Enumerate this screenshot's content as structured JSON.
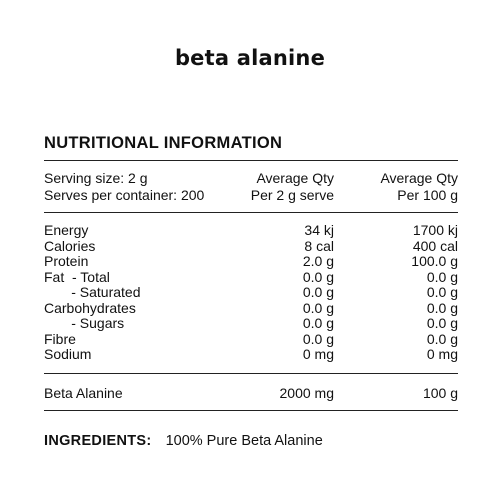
{
  "title": "beta alanine",
  "nutrition": {
    "heading": "NUTRITIONAL INFORMATION",
    "header_rows": [
      {
        "c1": "Serving size: 2 g",
        "c2": "Average Qty",
        "c3": "Average Qty"
      },
      {
        "c1": "Serves per container: 200",
        "c2": "Per 2 g serve",
        "c3": "Per 100 g"
      }
    ],
    "rows": [
      {
        "c1": "Energy",
        "c2": "34 kj",
        "c3": "1700 kj"
      },
      {
        "c1": "Calories",
        "c2": "8 cal",
        "c3": "400 cal"
      },
      {
        "c1": "Protein",
        "c2": "2.0 g",
        "c3": "100.0 g"
      },
      {
        "c1": "Fat  - Total",
        "c2": "0.0 g",
        "c3": "0.0 g"
      },
      {
        "c1": "       - Saturated",
        "c2": "0.0 g",
        "c3": "0.0 g"
      },
      {
        "c1": "Carbohydrates",
        "c2": "0.0 g",
        "c3": "0.0 g"
      },
      {
        "c1": "       - Sugars",
        "c2": "0.0 g",
        "c3": "0.0 g"
      },
      {
        "c1": "Fibre",
        "c2": "0.0 g",
        "c3": "0.0 g"
      },
      {
        "c1": "Sodium",
        "c2": "0 mg",
        "c3": "0 mg"
      }
    ],
    "active_row": {
      "c1": "Beta Alanine",
      "c2": "2000 mg",
      "c3": "100 g"
    }
  },
  "ingredients": {
    "label": "INGREDIENTS:",
    "text": "100% Pure Beta Alanine"
  }
}
